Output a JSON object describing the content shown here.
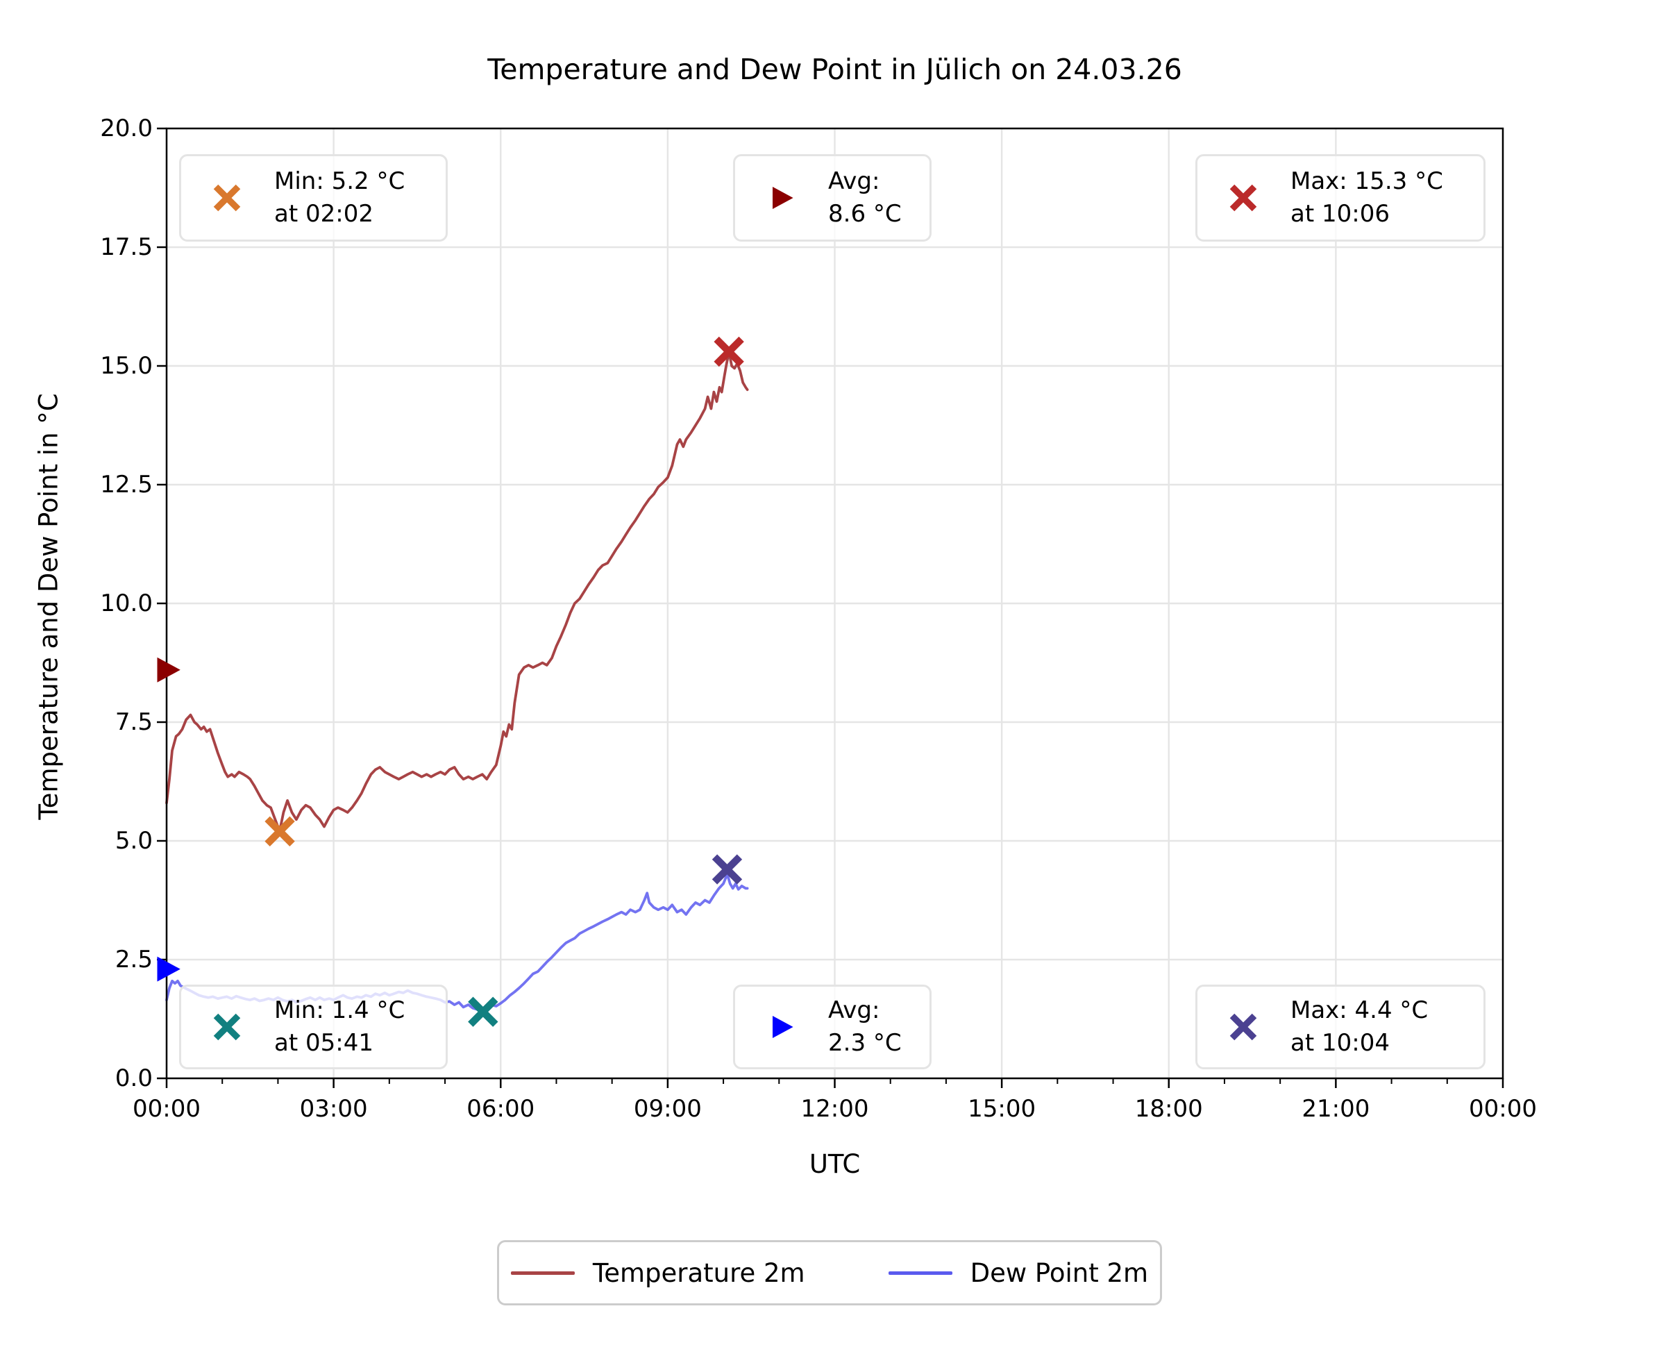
{
  "chart_data": {
    "type": "line",
    "title": "Temperature and Dew Point in Jülich on 24.03.26",
    "xlabel": "UTC",
    "ylabel": "Temperature and Dew Point in °C",
    "xlim_hours": [
      0,
      24
    ],
    "ylim": [
      0,
      20
    ],
    "grid": true,
    "x_major_ticks_hours": [
      0,
      3,
      6,
      9,
      12,
      15,
      18,
      21,
      24
    ],
    "x_tick_labels": [
      "00:00",
      "03:00",
      "06:00",
      "09:00",
      "12:00",
      "15:00",
      "18:00",
      "21:00",
      "00:00"
    ],
    "x_minor_ticks_every_hours": 1,
    "y_major_ticks": [
      0,
      2.5,
      5,
      7.5,
      10,
      12.5,
      15,
      17.5,
      20
    ],
    "y_tick_labels": [
      "0.0",
      "2.5",
      "5.0",
      "7.5",
      "10.0",
      "12.5",
      "15.0",
      "17.5",
      "20.0"
    ],
    "legend_position": "bottom-center",
    "colors": {
      "temperature_line": "#a84345",
      "dew_point_line": "#5a5aee",
      "temp_min_marker": "#d9782d",
      "temp_avg_marker": "#8b0000",
      "temp_max_marker": "#bb2a2a",
      "dew_min_marker": "#118080",
      "dew_avg_marker": "#0000ff",
      "dew_max_marker": "#4b4191",
      "grid": "#e5e5e5"
    },
    "series": [
      {
        "name": "Temperature 2m",
        "color": "#a84345",
        "points": [
          [
            0.0,
            5.8
          ],
          [
            0.05,
            6.3
          ],
          [
            0.1,
            6.9
          ],
          [
            0.17,
            7.2
          ],
          [
            0.22,
            7.25
          ],
          [
            0.28,
            7.35
          ],
          [
            0.35,
            7.55
          ],
          [
            0.43,
            7.65
          ],
          [
            0.5,
            7.5
          ],
          [
            0.55,
            7.45
          ],
          [
            0.62,
            7.35
          ],
          [
            0.67,
            7.4
          ],
          [
            0.72,
            7.3
          ],
          [
            0.78,
            7.35
          ],
          [
            0.85,
            7.1
          ],
          [
            0.92,
            6.85
          ],
          [
            1.0,
            6.6
          ],
          [
            1.05,
            6.45
          ],
          [
            1.1,
            6.35
          ],
          [
            1.17,
            6.4
          ],
          [
            1.22,
            6.35
          ],
          [
            1.3,
            6.45
          ],
          [
            1.38,
            6.4
          ],
          [
            1.45,
            6.35
          ],
          [
            1.5,
            6.3
          ],
          [
            1.58,
            6.15
          ],
          [
            1.65,
            6.0
          ],
          [
            1.72,
            5.85
          ],
          [
            1.8,
            5.75
          ],
          [
            1.87,
            5.7
          ],
          [
            1.95,
            5.45
          ],
          [
            2.03,
            5.2
          ],
          [
            2.1,
            5.6
          ],
          [
            2.17,
            5.85
          ],
          [
            2.25,
            5.6
          ],
          [
            2.33,
            5.45
          ],
          [
            2.42,
            5.65
          ],
          [
            2.5,
            5.75
          ],
          [
            2.58,
            5.7
          ],
          [
            2.67,
            5.55
          ],
          [
            2.75,
            5.45
          ],
          [
            2.83,
            5.3
          ],
          [
            2.92,
            5.5
          ],
          [
            3.0,
            5.65
          ],
          [
            3.08,
            5.7
          ],
          [
            3.17,
            5.65
          ],
          [
            3.25,
            5.6
          ],
          [
            3.33,
            5.7
          ],
          [
            3.42,
            5.85
          ],
          [
            3.5,
            6.0
          ],
          [
            3.58,
            6.2
          ],
          [
            3.67,
            6.4
          ],
          [
            3.75,
            6.5
          ],
          [
            3.83,
            6.55
          ],
          [
            3.92,
            6.45
          ],
          [
            4.0,
            6.4
          ],
          [
            4.08,
            6.35
          ],
          [
            4.17,
            6.3
          ],
          [
            4.25,
            6.35
          ],
          [
            4.33,
            6.4
          ],
          [
            4.42,
            6.45
          ],
          [
            4.5,
            6.4
          ],
          [
            4.58,
            6.35
          ],
          [
            4.67,
            6.4
          ],
          [
            4.75,
            6.35
          ],
          [
            4.83,
            6.4
          ],
          [
            4.92,
            6.45
          ],
          [
            5.0,
            6.4
          ],
          [
            5.08,
            6.5
          ],
          [
            5.17,
            6.55
          ],
          [
            5.25,
            6.4
          ],
          [
            5.33,
            6.3
          ],
          [
            5.42,
            6.35
          ],
          [
            5.5,
            6.3
          ],
          [
            5.58,
            6.35
          ],
          [
            5.67,
            6.4
          ],
          [
            5.75,
            6.3
          ],
          [
            5.83,
            6.45
          ],
          [
            5.92,
            6.6
          ],
          [
            6.0,
            7.0
          ],
          [
            6.05,
            7.3
          ],
          [
            6.1,
            7.2
          ],
          [
            6.15,
            7.45
          ],
          [
            6.2,
            7.35
          ],
          [
            6.25,
            7.9
          ],
          [
            6.33,
            8.5
          ],
          [
            6.42,
            8.65
          ],
          [
            6.5,
            8.7
          ],
          [
            6.58,
            8.65
          ],
          [
            6.67,
            8.7
          ],
          [
            6.75,
            8.75
          ],
          [
            6.83,
            8.7
          ],
          [
            6.92,
            8.85
          ],
          [
            7.0,
            9.1
          ],
          [
            7.08,
            9.3
          ],
          [
            7.17,
            9.55
          ],
          [
            7.25,
            9.8
          ],
          [
            7.33,
            10.0
          ],
          [
            7.42,
            10.1
          ],
          [
            7.5,
            10.25
          ],
          [
            7.58,
            10.4
          ],
          [
            7.67,
            10.55
          ],
          [
            7.75,
            10.7
          ],
          [
            7.83,
            10.8
          ],
          [
            7.92,
            10.85
          ],
          [
            8.0,
            11.0
          ],
          [
            8.08,
            11.15
          ],
          [
            8.17,
            11.3
          ],
          [
            8.25,
            11.45
          ],
          [
            8.33,
            11.6
          ],
          [
            8.42,
            11.75
          ],
          [
            8.5,
            11.9
          ],
          [
            8.58,
            12.05
          ],
          [
            8.67,
            12.2
          ],
          [
            8.75,
            12.3
          ],
          [
            8.83,
            12.45
          ],
          [
            8.92,
            12.55
          ],
          [
            9.0,
            12.65
          ],
          [
            9.08,
            12.9
          ],
          [
            9.17,
            13.35
          ],
          [
            9.22,
            13.45
          ],
          [
            9.28,
            13.3
          ],
          [
            9.33,
            13.45
          ],
          [
            9.42,
            13.6
          ],
          [
            9.5,
            13.75
          ],
          [
            9.58,
            13.9
          ],
          [
            9.67,
            14.1
          ],
          [
            9.72,
            14.35
          ],
          [
            9.78,
            14.1
          ],
          [
            9.83,
            14.45
          ],
          [
            9.88,
            14.25
          ],
          [
            9.93,
            14.55
          ],
          [
            9.97,
            14.45
          ],
          [
            10.02,
            14.8
          ],
          [
            10.05,
            15.0
          ],
          [
            10.1,
            15.3
          ],
          [
            10.15,
            15.0
          ],
          [
            10.2,
            14.95
          ],
          [
            10.25,
            15.05
          ],
          [
            10.3,
            14.9
          ],
          [
            10.35,
            14.65
          ],
          [
            10.4,
            14.55
          ],
          [
            10.43,
            14.5
          ]
        ]
      },
      {
        "name": "Dew Point 2m",
        "color": "#5a5aee",
        "points": [
          [
            0.0,
            1.65
          ],
          [
            0.05,
            1.9
          ],
          [
            0.1,
            2.05
          ],
          [
            0.15,
            2.0
          ],
          [
            0.2,
            2.05
          ],
          [
            0.25,
            1.95
          ],
          [
            0.33,
            1.9
          ],
          [
            0.42,
            1.85
          ],
          [
            0.5,
            1.8
          ],
          [
            0.58,
            1.75
          ],
          [
            0.67,
            1.72
          ],
          [
            0.75,
            1.7
          ],
          [
            0.83,
            1.72
          ],
          [
            0.92,
            1.68
          ],
          [
            1.0,
            1.7
          ],
          [
            1.08,
            1.72
          ],
          [
            1.17,
            1.68
          ],
          [
            1.25,
            1.73
          ],
          [
            1.33,
            1.7
          ],
          [
            1.42,
            1.67
          ],
          [
            1.5,
            1.65
          ],
          [
            1.58,
            1.68
          ],
          [
            1.67,
            1.63
          ],
          [
            1.75,
            1.65
          ],
          [
            1.83,
            1.68
          ],
          [
            1.92,
            1.65
          ],
          [
            2.0,
            1.7
          ],
          [
            2.08,
            1.65
          ],
          [
            2.17,
            1.62
          ],
          [
            2.25,
            1.65
          ],
          [
            2.33,
            1.6
          ],
          [
            2.42,
            1.63
          ],
          [
            2.5,
            1.67
          ],
          [
            2.58,
            1.7
          ],
          [
            2.67,
            1.65
          ],
          [
            2.75,
            1.7
          ],
          [
            2.83,
            1.65
          ],
          [
            2.92,
            1.68
          ],
          [
            3.0,
            1.65
          ],
          [
            3.08,
            1.7
          ],
          [
            3.17,
            1.75
          ],
          [
            3.25,
            1.7
          ],
          [
            3.33,
            1.68
          ],
          [
            3.42,
            1.72
          ],
          [
            3.5,
            1.7
          ],
          [
            3.58,
            1.75
          ],
          [
            3.67,
            1.72
          ],
          [
            3.75,
            1.78
          ],
          [
            3.83,
            1.75
          ],
          [
            3.92,
            1.8
          ],
          [
            4.0,
            1.75
          ],
          [
            4.08,
            1.78
          ],
          [
            4.17,
            1.82
          ],
          [
            4.25,
            1.8
          ],
          [
            4.33,
            1.85
          ],
          [
            4.42,
            1.8
          ],
          [
            4.5,
            1.78
          ],
          [
            4.58,
            1.75
          ],
          [
            4.67,
            1.72
          ],
          [
            4.75,
            1.7
          ],
          [
            4.83,
            1.68
          ],
          [
            4.92,
            1.65
          ],
          [
            5.0,
            1.6
          ],
          [
            5.08,
            1.62
          ],
          [
            5.17,
            1.55
          ],
          [
            5.25,
            1.6
          ],
          [
            5.33,
            1.5
          ],
          [
            5.42,
            1.55
          ],
          [
            5.5,
            1.48
          ],
          [
            5.58,
            1.45
          ],
          [
            5.68,
            1.4
          ],
          [
            5.75,
            1.5
          ],
          [
            5.83,
            1.55
          ],
          [
            5.92,
            1.52
          ],
          [
            6.0,
            1.58
          ],
          [
            6.08,
            1.65
          ],
          [
            6.17,
            1.75
          ],
          [
            6.25,
            1.82
          ],
          [
            6.33,
            1.9
          ],
          [
            6.42,
            2.0
          ],
          [
            6.5,
            2.1
          ],
          [
            6.58,
            2.2
          ],
          [
            6.67,
            2.25
          ],
          [
            6.75,
            2.35
          ],
          [
            6.83,
            2.45
          ],
          [
            6.92,
            2.55
          ],
          [
            7.0,
            2.65
          ],
          [
            7.08,
            2.75
          ],
          [
            7.17,
            2.85
          ],
          [
            7.25,
            2.9
          ],
          [
            7.33,
            2.95
          ],
          [
            7.42,
            3.05
          ],
          [
            7.5,
            3.1
          ],
          [
            7.58,
            3.15
          ],
          [
            7.67,
            3.2
          ],
          [
            7.75,
            3.25
          ],
          [
            7.83,
            3.3
          ],
          [
            7.92,
            3.35
          ],
          [
            8.0,
            3.4
          ],
          [
            8.08,
            3.45
          ],
          [
            8.17,
            3.5
          ],
          [
            8.25,
            3.45
          ],
          [
            8.33,
            3.55
          ],
          [
            8.42,
            3.5
          ],
          [
            8.5,
            3.55
          ],
          [
            8.58,
            3.75
          ],
          [
            8.63,
            3.9
          ],
          [
            8.67,
            3.7
          ],
          [
            8.75,
            3.6
          ],
          [
            8.83,
            3.55
          ],
          [
            8.92,
            3.6
          ],
          [
            9.0,
            3.55
          ],
          [
            9.08,
            3.65
          ],
          [
            9.17,
            3.5
          ],
          [
            9.25,
            3.55
          ],
          [
            9.33,
            3.45
          ],
          [
            9.42,
            3.6
          ],
          [
            9.5,
            3.7
          ],
          [
            9.58,
            3.65
          ],
          [
            9.67,
            3.75
          ],
          [
            9.75,
            3.7
          ],
          [
            9.83,
            3.85
          ],
          [
            9.92,
            4.0
          ],
          [
            10.0,
            4.1
          ],
          [
            10.07,
            4.3
          ],
          [
            10.12,
            4.1
          ],
          [
            10.17,
            4.0
          ],
          [
            10.22,
            4.1
          ],
          [
            10.27,
            3.98
          ],
          [
            10.33,
            4.05
          ],
          [
            10.4,
            4.0
          ],
          [
            10.43,
            4.0
          ]
        ]
      }
    ],
    "point_markers": [
      {
        "id": "temp-min",
        "shape": "x",
        "color": "#d9782d",
        "x": 2.033,
        "y": 5.2
      },
      {
        "id": "temp-avg",
        "shape": "triangle-right",
        "color": "#8b0000",
        "x": 0,
        "y": 8.6
      },
      {
        "id": "temp-max",
        "shape": "x",
        "color": "#bb2a2a",
        "x": 10.1,
        "y": 15.3
      },
      {
        "id": "dew-min",
        "shape": "x",
        "color": "#118080",
        "x": 5.683,
        "y": 1.4
      },
      {
        "id": "dew-avg",
        "shape": "triangle-right",
        "color": "#0000ff",
        "x": 0,
        "y": 2.3
      },
      {
        "id": "dew-max",
        "shape": "x",
        "color": "#4b4191",
        "x": 10.067,
        "y": 4.4
      }
    ],
    "annotations": [
      {
        "id": "temp-min",
        "marker": "x",
        "color": "#d9782d",
        "line1": "Min: 5.2 °C",
        "line2": "at 02:02"
      },
      {
        "id": "temp-avg",
        "marker": "triangle-right",
        "color": "#8b0000",
        "line1": "Avg:",
        "line2": "8.6 °C"
      },
      {
        "id": "temp-max",
        "marker": "x",
        "color": "#bb2a2a",
        "line1": "Max: 15.3 °C",
        "line2": "at 10:06"
      },
      {
        "id": "dew-min",
        "marker": "x",
        "color": "#118080",
        "line1": "Min: 1.4 °C",
        "line2": "at 05:41"
      },
      {
        "id": "dew-avg",
        "marker": "triangle-right",
        "color": "#0000ff",
        "line1": "Avg:",
        "line2": "2.3 °C"
      },
      {
        "id": "dew-max",
        "marker": "x",
        "color": "#4b4191",
        "line1": "Max: 4.4 °C",
        "line2": "at 10:04"
      }
    ],
    "legend": [
      {
        "label": "Temperature 2m",
        "color": "#a84345"
      },
      {
        "label": "Dew Point 2m",
        "color": "#5a5aee"
      }
    ]
  }
}
